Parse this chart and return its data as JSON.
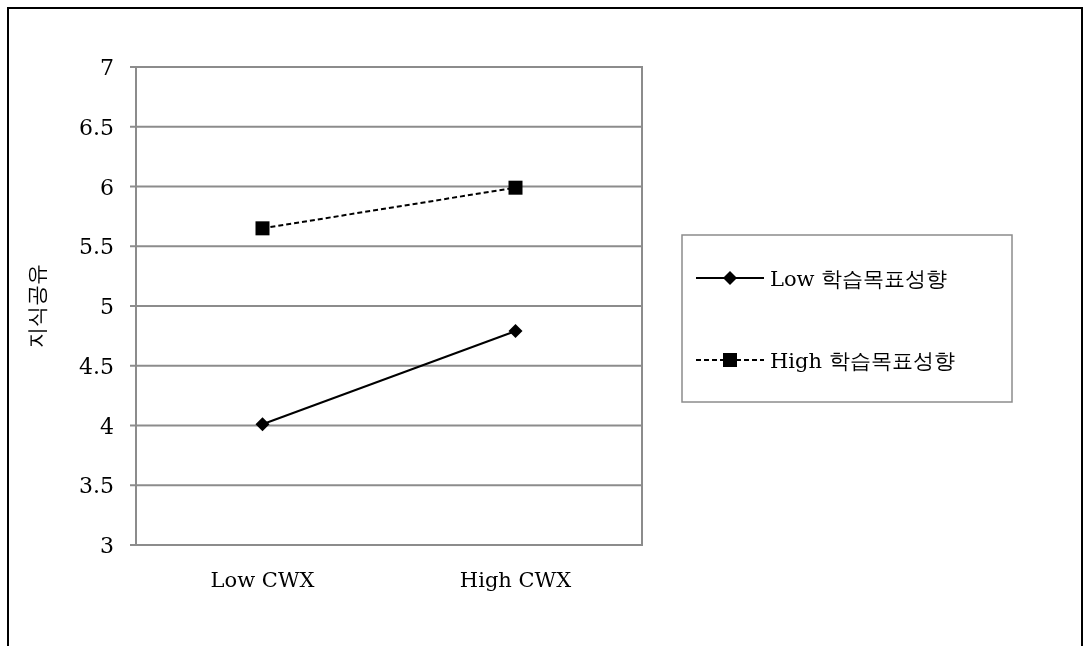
{
  "chart_data": {
    "type": "line",
    "ylabel": "지식공유",
    "categories": [
      "Low CWX",
      "High CWX"
    ],
    "series": [
      {
        "name": "Low 학습목표성향",
        "color": "#000000",
        "marker": "diamond",
        "line_style": "solid",
        "values": [
          4.01,
          4.79
        ]
      },
      {
        "name": "High 학습목표성향",
        "color": "#000000",
        "marker": "square",
        "line_style": "dashed",
        "values": [
          5.65,
          5.99
        ]
      }
    ],
    "ylim": [
      3,
      7
    ],
    "yticks": [
      3,
      3.5,
      4,
      4.5,
      5,
      5.5,
      6,
      6.5,
      7
    ],
    "grid": "y",
    "legend": "right"
  }
}
